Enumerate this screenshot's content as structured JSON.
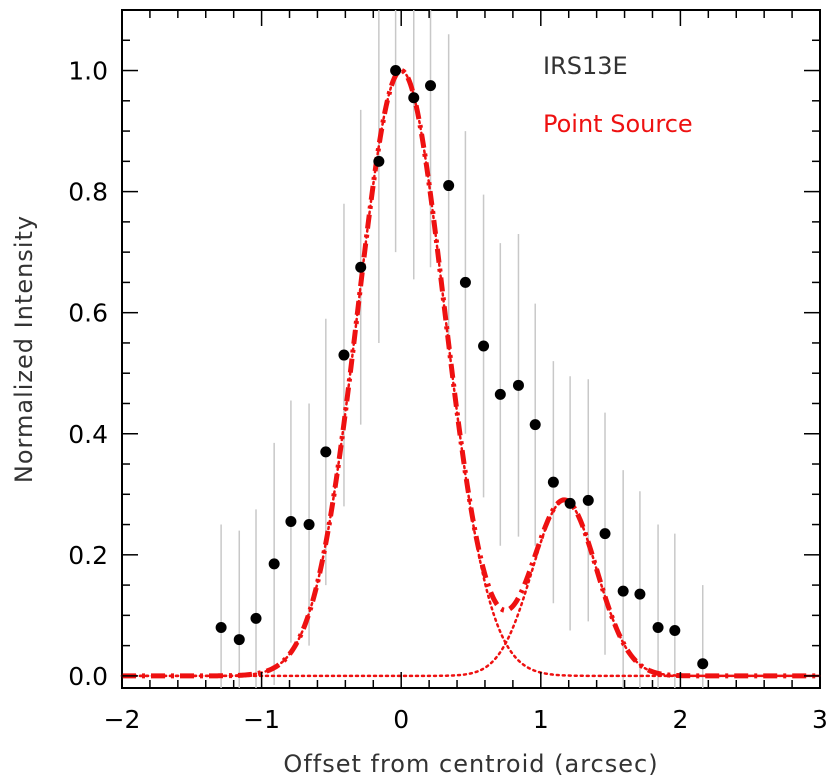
{
  "chart_data": {
    "type": "scatter",
    "xlabel": "Offset from centroid (arcsec)",
    "ylabel": "Normalized Intensity",
    "xlim": [
      -2,
      3
    ],
    "ylim": [
      -0.02,
      1.1
    ],
    "x_ticks": [
      -2,
      -1,
      0,
      1,
      2,
      3
    ],
    "x_tick_labels": [
      "−2",
      "−1",
      "0",
      "1",
      "2",
      "3"
    ],
    "y_ticks": [
      0.0,
      0.2,
      0.4,
      0.6,
      0.8,
      1.0
    ],
    "y_tick_labels": [
      "0.0",
      "0.2",
      "0.4",
      "0.6",
      "0.8",
      "1.0"
    ],
    "grid": false,
    "legend": [
      {
        "label": "IRS13E",
        "color": "#333333"
      },
      {
        "label": "Point Source",
        "color": "#ee1111"
      }
    ],
    "series": [
      {
        "name": "IRS13E",
        "style": "points-with-errorbars",
        "color": "#000000",
        "errorbar_color": "#c8c8c8",
        "x": [
          -1.29,
          -1.16,
          -1.04,
          -0.91,
          -0.79,
          -0.66,
          -0.54,
          -0.41,
          -0.29,
          -0.16,
          -0.04,
          0.09,
          0.21,
          0.34,
          0.46,
          0.59,
          0.71,
          0.84,
          0.96,
          1.09,
          1.21,
          1.34,
          1.46,
          1.59,
          1.71,
          1.84,
          1.96,
          2.16
        ],
        "y": [
          0.08,
          0.06,
          0.095,
          0.185,
          0.255,
          0.25,
          0.37,
          0.53,
          0.675,
          0.85,
          1.0,
          0.955,
          0.975,
          0.81,
          0.65,
          0.545,
          0.465,
          0.48,
          0.415,
          0.32,
          0.285,
          0.29,
          0.235,
          0.14,
          0.135,
          0.08,
          0.075,
          0.02
        ],
        "y_err": [
          0.17,
          0.18,
          0.18,
          0.2,
          0.2,
          0.2,
          0.22,
          0.25,
          0.26,
          0.3,
          0.3,
          0.3,
          0.3,
          0.25,
          0.25,
          0.25,
          0.25,
          0.25,
          0.2,
          0.2,
          0.21,
          0.2,
          0.2,
          0.2,
          0.17,
          0.17,
          0.16,
          0.13
        ]
      },
      {
        "name": "Point Source",
        "style": "dash-dot",
        "color": "#ee1111",
        "model": "sum-of-gaussians",
        "components": [
          {
            "amp": 1.0,
            "center": 0.0,
            "sigma": 0.31
          },
          {
            "amp": 0.29,
            "center": 1.17,
            "sigma": 0.23
          }
        ]
      },
      {
        "style": "dotted",
        "color": "#ee1111",
        "model": "gaussian",
        "component": {
          "amp": 1.0,
          "center": 0.0,
          "sigma": 0.31
        }
      },
      {
        "style": "dotted",
        "color": "#ee1111",
        "model": "gaussian",
        "component": {
          "amp": 0.29,
          "center": 1.17,
          "sigma": 0.23
        }
      }
    ]
  }
}
